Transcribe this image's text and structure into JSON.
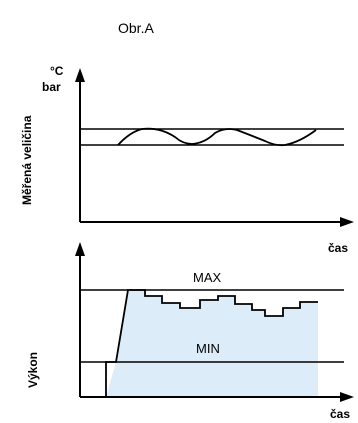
{
  "figure": {
    "title": "Obr.A"
  },
  "top_chart": {
    "y_label": "Měřená veličina",
    "y_units": [
      "°C",
      "bar"
    ],
    "x_label": "čas"
  },
  "bottom_chart": {
    "y_label": "Výkon",
    "x_label": "čas",
    "max_label": "MAX",
    "min_label": "MIN"
  },
  "colors": {
    "line": "#000000",
    "fill": "#dcecf8"
  }
}
